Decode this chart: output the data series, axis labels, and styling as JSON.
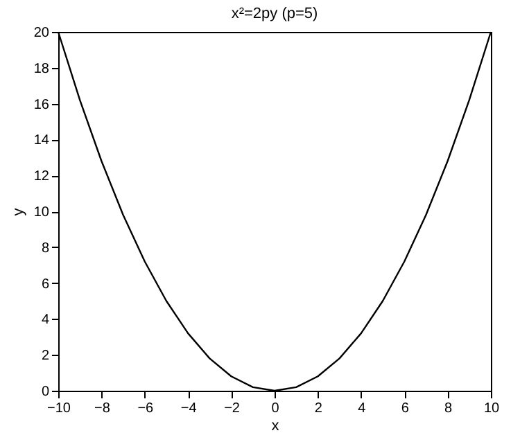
{
  "chart_data": {
    "type": "line",
    "title": "x²=2py (p=5)",
    "xlabel": "x",
    "ylabel": "y",
    "x": [
      -10,
      -9,
      -8,
      -7,
      -6,
      -5,
      -4,
      -3,
      -2,
      -1,
      0,
      1,
      2,
      3,
      4,
      5,
      6,
      7,
      8,
      9,
      10
    ],
    "series": [
      {
        "color": "#000000",
        "values": [
          20,
          16.2,
          12.8,
          9.8,
          7.2,
          5,
          3.2,
          1.8,
          0.8,
          0.2,
          0,
          0.2,
          0.8,
          1.8,
          3.2,
          5,
          7.2,
          9.8,
          12.8,
          16.2,
          20
        ]
      }
    ],
    "xlim": [
      -10,
      10
    ],
    "xticks": [
      -10,
      -8,
      -6,
      -4,
      -2,
      0,
      2,
      4,
      6,
      8,
      10
    ],
    "ylim": [
      0,
      20
    ],
    "yticks": [
      0,
      2,
      4,
      6,
      8,
      10,
      12,
      14,
      16,
      18,
      20
    ],
    "grid": false,
    "marker": "none",
    "line_style": "solid"
  }
}
